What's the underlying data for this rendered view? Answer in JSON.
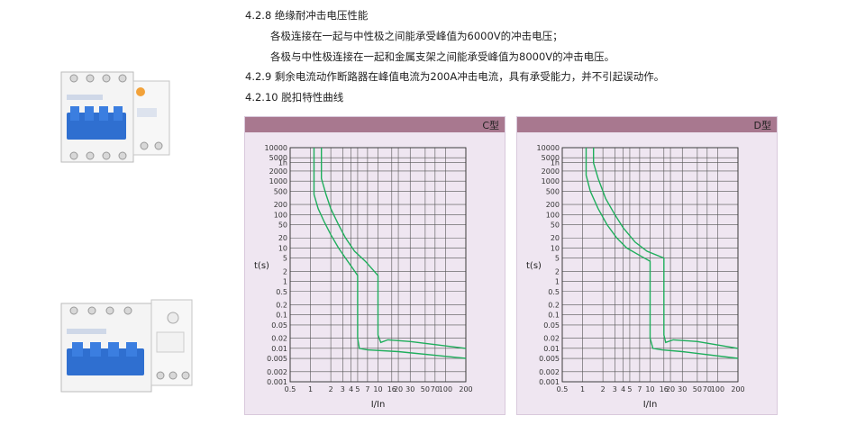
{
  "sections": [
    {
      "id": "s428",
      "text": "4.2.8 绝缘耐冲击电压性能"
    },
    {
      "id": "s428a",
      "text": "各极连接在一起与中性极之间能承受峰值为6000V的冲击电压；"
    },
    {
      "id": "s428b",
      "text": "各极与中性极连接在一起和金属支架之间能承受峰值为8000V的冲击电压。"
    },
    {
      "id": "s429",
      "text": "4.2.9 剩余电流动作断路器在峰值电流为200A冲击电流，具有承受能力，并不引起误动作。"
    },
    {
      "id": "s4210",
      "text": "4.2.10 脱扣特性曲线"
    }
  ],
  "colors": {
    "curve": "#1fae5c",
    "panel_bg": "#efe6f1",
    "header": "#a8788f",
    "grid": "#555555"
  },
  "chart_data": [
    {
      "type": "line",
      "title": "C型",
      "xlabel": "I/In",
      "ylabel": "t(s)",
      "xscale": "log",
      "yscale": "log",
      "xlim": [
        0.5,
        200
      ],
      "ylim": [
        0.001,
        10000
      ],
      "x_ticks": [
        0.5,
        1,
        2,
        3,
        4,
        5,
        7,
        10,
        16,
        20,
        30,
        50,
        70,
        100,
        200
      ],
      "x_tick_labels": [
        "0.5",
        "1",
        "2",
        "3",
        "4",
        "5",
        "7",
        "10",
        "16",
        "20",
        "30",
        "50",
        "70",
        "100",
        "200"
      ],
      "y_ticks": [
        10000,
        5000,
        3600,
        2000,
        1000,
        500,
        200,
        100,
        50,
        20,
        10,
        5,
        2,
        1,
        0.5,
        0.2,
        0.1,
        0.05,
        0.02,
        0.01,
        0.005,
        0.002,
        0.001
      ],
      "y_tick_labels": [
        "10000",
        "5000",
        "1h",
        "2000",
        "1000",
        "500",
        "200",
        "100",
        "50",
        "20",
        "10",
        "5",
        "2",
        "1",
        "0.5",
        "0.2",
        "0.1",
        "0.05",
        "0.02",
        "0.01",
        "0.005",
        "0.002",
        "0.001"
      ],
      "series": [
        {
          "x": [
            1.13,
            1.13,
            1.3,
            1.6,
            2.0,
            2.6,
            3.3,
            4.2,
            5.0,
            5.0,
            5.3,
            7,
            20,
            200
          ],
          "y": [
            10000,
            400,
            150,
            60,
            25,
            10,
            5,
            2.5,
            1.5,
            0.02,
            0.01,
            0.009,
            0.008,
            0.005
          ]
        },
        {
          "x": [
            1.45,
            1.45,
            1.7,
            2.0,
            2.6,
            3.3,
            4.5,
            6.5,
            10,
            10,
            11,
            14,
            30,
            200
          ],
          "y": [
            10000,
            1200,
            400,
            150,
            50,
            20,
            8,
            4,
            1.5,
            0.025,
            0.015,
            0.018,
            0.016,
            0.01
          ]
        }
      ]
    },
    {
      "type": "line",
      "title": "D型",
      "xlabel": "I/In",
      "ylabel": "t(s)",
      "xscale": "log",
      "yscale": "log",
      "xlim": [
        0.5,
        200
      ],
      "ylim": [
        0.001,
        10000
      ],
      "x_ticks": [
        0.5,
        1,
        2,
        3,
        4,
        5,
        7,
        10,
        16,
        20,
        30,
        50,
        70,
        100,
        200
      ],
      "x_tick_labels": [
        "0.5",
        "1",
        "2",
        "3",
        "4",
        "5",
        "7",
        "10",
        "16",
        "20",
        "30",
        "50",
        "70",
        "100",
        "200"
      ],
      "y_ticks": [
        10000,
        5000,
        3600,
        2000,
        1000,
        500,
        200,
        100,
        50,
        20,
        10,
        5,
        2,
        1,
        0.5,
        0.2,
        0.1,
        0.05,
        0.02,
        0.01,
        0.005,
        0.002,
        0.001
      ],
      "y_tick_labels": [
        "10000",
        "5000",
        "1h",
        "2000",
        "1000",
        "500",
        "200",
        "100",
        "50",
        "20",
        "10",
        "5",
        "2",
        "1",
        "0.5",
        "0.2",
        "0.1",
        "0.05",
        "0.02",
        "0.01",
        "0.005",
        "0.002",
        "0.001"
      ],
      "series": [
        {
          "x": [
            1.13,
            1.13,
            1.3,
            1.7,
            2.3,
            3.2,
            4.5,
            7,
            10,
            10,
            11,
            15,
            30,
            200
          ],
          "y": [
            10000,
            1500,
            500,
            150,
            50,
            20,
            10,
            6,
            4,
            0.02,
            0.01,
            0.009,
            0.008,
            0.005
          ]
        },
        {
          "x": [
            1.45,
            1.45,
            1.7,
            2.2,
            3,
            4,
            6,
            9,
            16,
            16,
            17,
            22,
            50,
            200
          ],
          "y": [
            10000,
            3500,
            1200,
            300,
            100,
            40,
            15,
            8,
            5,
            0.025,
            0.015,
            0.018,
            0.016,
            0.01
          ]
        }
      ]
    }
  ]
}
